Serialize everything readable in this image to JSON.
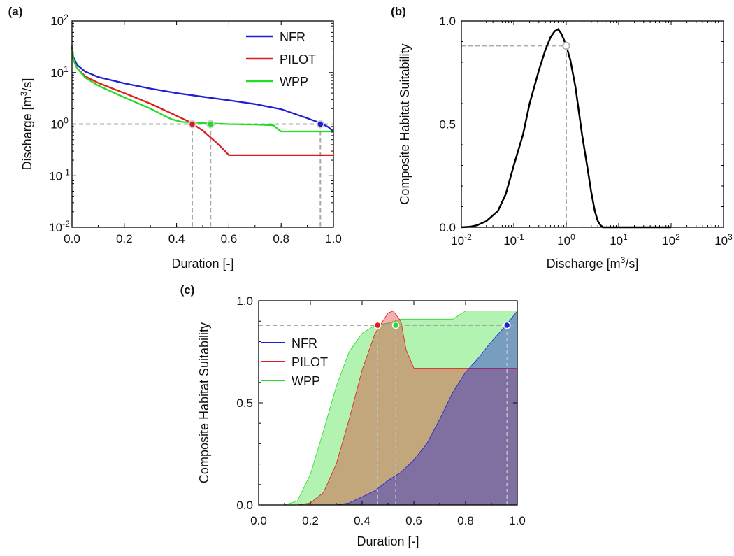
{
  "colors": {
    "NFR": "#1f1fd6",
    "PILOT": "#e01b1b",
    "WPP": "#22dd22",
    "ref": "#a8a8a8",
    "curve": "#000000"
  },
  "chart_data": [
    {
      "panel": "(a)",
      "type": "line",
      "xlabel": "Duration [-]",
      "ylabel": "Discharge [m³/s]",
      "xlim": [
        0,
        1
      ],
      "ylim": [
        0.01,
        100
      ],
      "yscale": "log",
      "x_ticks": [
        "0.0",
        "0.2",
        "0.4",
        "0.6",
        "0.8",
        "1.0"
      ],
      "y_ticks": [
        {
          "base": "10",
          "exp": "-2"
        },
        {
          "base": "10",
          "exp": "-1"
        },
        {
          "base": "10",
          "exp": "0"
        },
        {
          "base": "10",
          "exp": "1"
        },
        {
          "base": "10",
          "exp": "2"
        }
      ],
      "legend_position": "top-right",
      "series": [
        {
          "name": "NFR",
          "x": [
            0,
            0.005,
            0.02,
            0.05,
            0.1,
            0.2,
            0.3,
            0.4,
            0.5,
            0.6,
            0.7,
            0.8,
            0.9,
            0.95,
            0.98,
            1.0
          ],
          "y": [
            33,
            20,
            14,
            10.5,
            8.2,
            6.2,
            4.9,
            4.0,
            3.4,
            2.9,
            2.45,
            1.95,
            1.3,
            1.05,
            0.88,
            0.72
          ]
        },
        {
          "name": "PILOT",
          "x": [
            0,
            0.005,
            0.02,
            0.05,
            0.1,
            0.2,
            0.3,
            0.4,
            0.45,
            0.5,
            0.55,
            0.58,
            0.6,
            0.7,
            0.8,
            0.9,
            1.0
          ],
          "y": [
            33,
            18,
            12,
            8.5,
            6.3,
            4.0,
            2.5,
            1.45,
            1.1,
            0.75,
            0.45,
            0.32,
            0.25,
            0.25,
            0.25,
            0.25,
            0.25
          ]
        },
        {
          "name": "WPP",
          "x": [
            0,
            0.005,
            0.02,
            0.05,
            0.1,
            0.2,
            0.3,
            0.38,
            0.42,
            0.5,
            0.6,
            0.7,
            0.77,
            0.79,
            0.8,
            0.9,
            1.0
          ],
          "y": [
            33,
            18,
            12,
            8.0,
            5.6,
            3.3,
            2.0,
            1.25,
            1.1,
            1.05,
            1.0,
            0.98,
            0.95,
            0.78,
            0.72,
            0.72,
            0.72
          ]
        }
      ],
      "markers": [
        {
          "series": "PILOT",
          "x": 0.46,
          "y": 1.0
        },
        {
          "series": "WPP",
          "x": 0.53,
          "y": 1.0
        },
        {
          "series": "NFR",
          "x": 0.95,
          "y": 1.0
        }
      ],
      "reference_y": 1.0
    },
    {
      "panel": "(b)",
      "type": "line",
      "xlabel": "Discharge [m³/s]",
      "ylabel": "Composite Habitat Suitability",
      "xscale": "log",
      "xlim": [
        0.01,
        1000
      ],
      "ylim": [
        0,
        1
      ],
      "x_ticks": [
        {
          "base": "10",
          "exp": "-2"
        },
        {
          "base": "10",
          "exp": "-1"
        },
        {
          "base": "10",
          "exp": "0"
        },
        {
          "base": "10",
          "exp": "1"
        },
        {
          "base": "10",
          "exp": "2"
        },
        {
          "base": "10",
          "exp": "3"
        }
      ],
      "y_ticks": [
        "0.0",
        "0.5",
        "1.0"
      ],
      "series": [
        {
          "name": "",
          "x": [
            0.01,
            0.015,
            0.02,
            0.03,
            0.05,
            0.07,
            0.1,
            0.15,
            0.2,
            0.3,
            0.4,
            0.5,
            0.6,
            0.7,
            0.8,
            0.9,
            1.0,
            1.2,
            1.5,
            2,
            2.5,
            3,
            3.5,
            4,
            4.5,
            5,
            7,
            10,
            50,
            100
          ],
          "y": [
            0,
            0.003,
            0.01,
            0.03,
            0.08,
            0.16,
            0.3,
            0.45,
            0.6,
            0.76,
            0.86,
            0.92,
            0.95,
            0.96,
            0.94,
            0.91,
            0.88,
            0.81,
            0.68,
            0.45,
            0.3,
            0.17,
            0.08,
            0.03,
            0.01,
            0,
            0,
            0,
            0,
            0
          ]
        }
      ],
      "markers": [
        {
          "x": 1.0,
          "y": 0.88
        }
      ],
      "reference_y": 0.88
    },
    {
      "panel": "(c)",
      "type": "area",
      "xlabel": "Duration [-]",
      "ylabel": "Composite Habitat Suitability",
      "xlim": [
        0,
        1
      ],
      "ylim": [
        0,
        1
      ],
      "x_ticks": [
        "0.0",
        "0.2",
        "0.4",
        "0.6",
        "0.8",
        "1.0"
      ],
      "y_ticks": [
        "0.0",
        "0.5",
        "1.0"
      ],
      "legend_position": "left",
      "series": [
        {
          "name": "WPP",
          "x": [
            0,
            0.1,
            0.15,
            0.2,
            0.25,
            0.3,
            0.35,
            0.4,
            0.45,
            0.5,
            0.55,
            0.6,
            0.7,
            0.75,
            0.8,
            0.9,
            1.0
          ],
          "y": [
            0,
            0,
            0.02,
            0.15,
            0.36,
            0.58,
            0.75,
            0.84,
            0.88,
            0.89,
            0.91,
            0.91,
            0.91,
            0.91,
            0.95,
            0.95,
            0.95
          ]
        },
        {
          "name": "PILOT",
          "x": [
            0,
            0.15,
            0.2,
            0.25,
            0.3,
            0.35,
            0.4,
            0.45,
            0.47,
            0.5,
            0.52,
            0.55,
            0.57,
            0.6,
            0.7,
            0.8,
            0.9,
            1.0
          ],
          "y": [
            0,
            0,
            0.01,
            0.06,
            0.2,
            0.42,
            0.66,
            0.84,
            0.88,
            0.94,
            0.95,
            0.9,
            0.76,
            0.67,
            0.67,
            0.67,
            0.67,
            0.67
          ]
        },
        {
          "name": "NFR",
          "x": [
            0,
            0.3,
            0.35,
            0.4,
            0.45,
            0.5,
            0.55,
            0.6,
            0.65,
            0.7,
            0.75,
            0.8,
            0.85,
            0.9,
            0.95,
            1.0
          ],
          "y": [
            0,
            0,
            0.01,
            0.04,
            0.07,
            0.12,
            0.16,
            0.22,
            0.3,
            0.42,
            0.55,
            0.65,
            0.72,
            0.8,
            0.87,
            0.95
          ]
        }
      ],
      "markers": [
        {
          "series": "PILOT",
          "x": 0.46,
          "y": 0.88
        },
        {
          "series": "WPP",
          "x": 0.53,
          "y": 0.88
        },
        {
          "series": "NFR",
          "x": 0.96,
          "y": 0.88
        }
      ],
      "reference_y": 0.88
    }
  ]
}
